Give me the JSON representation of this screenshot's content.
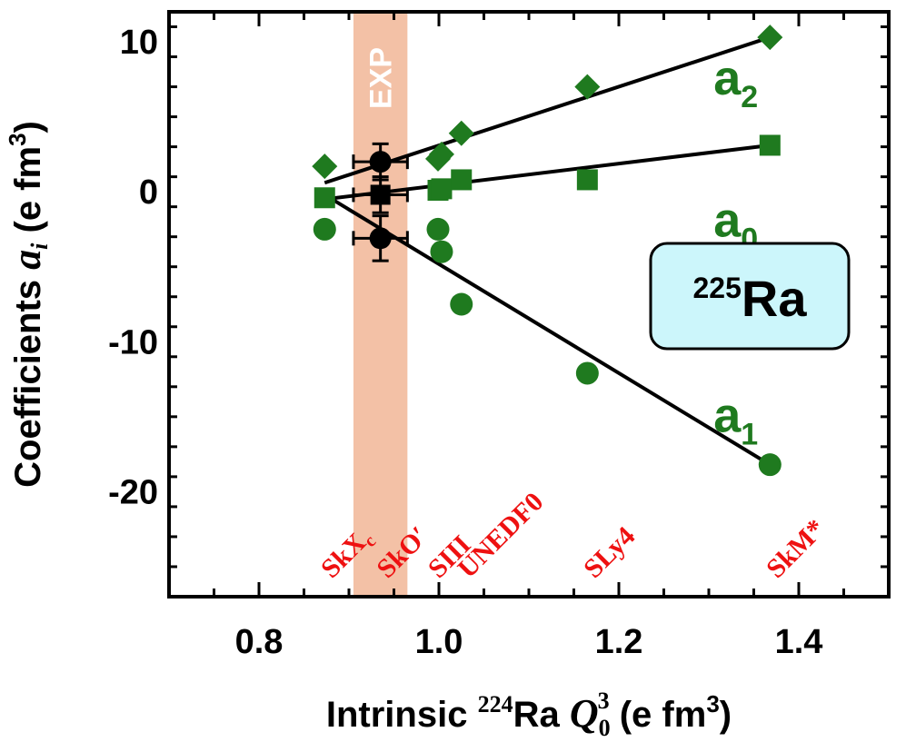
{
  "chart_data": {
    "type": "scatter",
    "xlabel": {
      "prefix": "Intrinsic ",
      "sup_mass": "224",
      "element": "Ra",
      "symbol": "Q",
      "sub": "0",
      "sup": "3",
      "unit_open": " (e fm",
      "unit_sup": "3",
      "unit_close": ")"
    },
    "ylabel": {
      "text": "Coefficients ",
      "symbol": "a",
      "sub": "i",
      "unit_open": " (e fm",
      "unit_sup": "3",
      "unit_close": ")"
    },
    "xlim": [
      0.7,
      1.5
    ],
    "ylim": [
      -27,
      12
    ],
    "x_ticks": [
      0.8,
      1.0,
      1.2,
      1.4
    ],
    "x_tick_labels": [
      "0.8",
      "1.0",
      "1.2",
      "1.4"
    ],
    "y_ticks": [
      10,
      0,
      -10,
      -20
    ],
    "y_tick_labels": [
      "10",
      "0",
      "-10",
      "-20"
    ],
    "exp_band": {
      "x_range": [
        0.905,
        0.965
      ],
      "label": "EXP",
      "color": "#f3c1a6"
    },
    "series": [
      {
        "name": "a",
        "sub": "2",
        "marker": "diamond",
        "color": "#1f7a1f",
        "x": [
          0.873,
          0.999,
          1.003,
          1.025,
          1.165,
          1.368
        ],
        "y": [
          1.7,
          2.2,
          2.5,
          3.9,
          7.0,
          10.3
        ],
        "fit": [
          [
            0.873,
            0.6
          ],
          [
            1.368,
            10.3
          ]
        ],
        "label_pos": {
          "x": 1.33,
          "y": 6.5
        }
      },
      {
        "name": "a",
        "sub": "0",
        "marker": "square",
        "color": "#1f7a1f",
        "x": [
          0.873,
          0.999,
          1.003,
          1.025,
          1.165,
          1.368
        ],
        "y": [
          -0.4,
          0.1,
          0.2,
          0.8,
          0.8,
          3.1
        ],
        "fit": [
          [
            0.873,
            -0.5
          ],
          [
            1.368,
            3.1
          ]
        ],
        "label_pos": {
          "x": 1.33,
          "y": -3.0
        }
      },
      {
        "name": "a",
        "sub": "1",
        "marker": "circle",
        "color": "#1f7a1f",
        "x": [
          0.873,
          0.999,
          1.003,
          1.025,
          1.165,
          1.368
        ],
        "y": [
          -2.5,
          -2.5,
          -4.0,
          -7.5,
          -12.1,
          -18.2
        ],
        "fit": [
          [
            0.873,
            -0.2
          ],
          [
            1.368,
            -18.2
          ]
        ],
        "label_pos": {
          "x": 1.33,
          "y": -16.0
        }
      }
    ],
    "experiment": [
      {
        "x": 0.935,
        "y": 2.0,
        "xerr": 0.03,
        "yerr": 1.2
      },
      {
        "x": 0.935,
        "y": -0.2,
        "xerr": 0.03,
        "yerr": 1.2
      },
      {
        "x": 0.935,
        "y": -3.1,
        "xerr": 0.03,
        "yerr": 1.5
      }
    ],
    "models": [
      {
        "text": "SkX",
        "sub": "c",
        "x": 0.873
      },
      {
        "text": "SkO′",
        "sub": "",
        "x": 0.935
      },
      {
        "text": "SIII",
        "sub": "",
        "x": 0.992
      },
      {
        "text": "UNEDF0",
        "sub": "",
        "x": 1.025
      },
      {
        "text": "SLy4",
        "sub": "",
        "x": 1.165
      },
      {
        "text": "SkM*",
        "sub": "",
        "x": 1.368
      }
    ],
    "nucleus": {
      "mass": "225",
      "element": "Ra",
      "box_color": "#ccf6fb"
    }
  }
}
